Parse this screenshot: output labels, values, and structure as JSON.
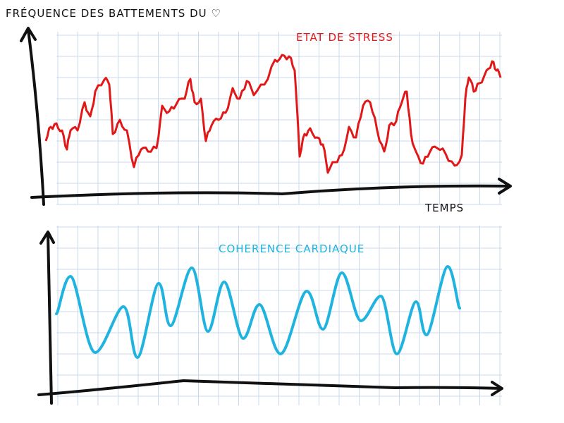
{
  "title": "FRÉQUENCE DES BATTEMENTS DU ♡",
  "labels": {
    "stress": "ETAT DE STRESS",
    "time": "TEMPS",
    "coherence": "COHERENCE CARDIAQUE"
  }
}
